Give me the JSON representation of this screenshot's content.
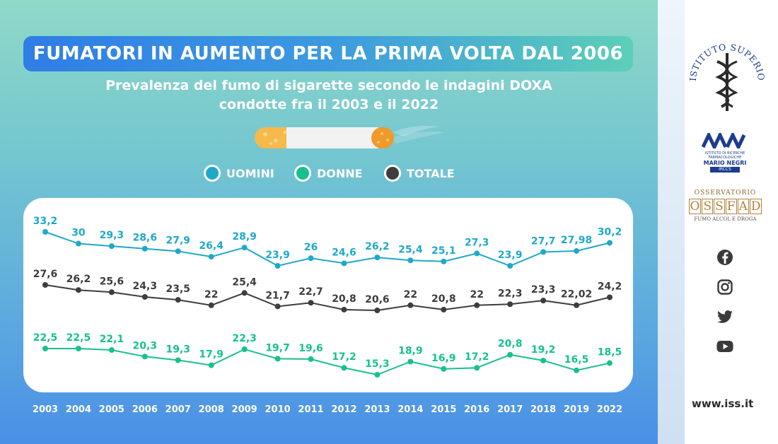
{
  "title": "FUMATORI IN AUMENTO PER LA PRIMA VOLTA DAL 2006",
  "subtitle_line1": "Prevalenza del fumo di sigarette secondo le indagini DOXA",
  "subtitle_line2": "condotte fra il 2003 e il 2022",
  "legend": {
    "uomini": "UOMINI",
    "donne": "DONNE",
    "totale": "TOTALE"
  },
  "colors": {
    "uomini": "#1ea9c8",
    "donne": "#17c08f",
    "totale": "#3d3d3d"
  },
  "chart_data": {
    "type": "line",
    "x": [
      "2003",
      "2004",
      "2005",
      "2006",
      "2007",
      "2008",
      "2009",
      "2010",
      "2011",
      "2012",
      "2013",
      "2014",
      "2015",
      "2016",
      "2017",
      "2018",
      "2019",
      "2022"
    ],
    "series": [
      {
        "name": "UOMINI",
        "color": "#1ea9c8",
        "values": [
          33.2,
          30,
          29.3,
          28.6,
          27.9,
          26.4,
          28.9,
          23.9,
          26,
          24.6,
          26.2,
          25.4,
          25.1,
          27.3,
          23.9,
          27.7,
          27.98,
          30.2
        ],
        "labels": [
          "33,2",
          "30",
          "29,3",
          "28,6",
          "27,9",
          "26,4",
          "28,9",
          "23,9",
          "26",
          "24,6",
          "26,2",
          "25,4",
          "25,1",
          "27,3",
          "23,9",
          "27,7",
          "27,98",
          "30,2"
        ]
      },
      {
        "name": "TOTALE",
        "color": "#3d3d3d",
        "values": [
          27.6,
          26.2,
          25.6,
          24.3,
          23.5,
          22,
          25.4,
          21.7,
          22.7,
          20.8,
          20.6,
          22,
          20.8,
          22,
          22.3,
          23.3,
          22.02,
          24.2
        ],
        "labels": [
          "27,6",
          "26,2",
          "25,6",
          "24,3",
          "23,5",
          "22",
          "25,4",
          "21,7",
          "22,7",
          "20,8",
          "20,6",
          "22",
          "20,8",
          "22",
          "22,3",
          "23,3",
          "22,02",
          "24,2"
        ]
      },
      {
        "name": "DONNE",
        "color": "#17c08f",
        "values": [
          22.5,
          22.5,
          22.1,
          20.3,
          19.3,
          17.9,
          22.3,
          19.7,
          19.6,
          17.2,
          15.3,
          18.9,
          16.9,
          17.2,
          20.8,
          19.2,
          16.5,
          18.5
        ],
        "labels": [
          "22,5",
          "22,5",
          "22,1",
          "20,3",
          "19,3",
          "17,9",
          "22,3",
          "19,7",
          "19,6",
          "17,2",
          "15,3",
          "18,9",
          "16,9",
          "17,2",
          "20,8",
          "19,2",
          "16,5",
          "18,5"
        ]
      }
    ]
  },
  "sidebar": {
    "iss_logo_text": "ISTITUTO SUPERIORE DI SANITÀ",
    "mn_logo_line1": "ISTITUTO DI RICERCHE FARMACOLOGICHE",
    "mn_logo_line2": "MARIO NEGRI",
    "mn_logo_line3": "IRCCS",
    "ossfad_line1": "OSSERVATORIO",
    "ossfad_letters": [
      "O",
      "S",
      "S",
      "F",
      "A",
      "D"
    ],
    "ossfad_line3": "FUMO ALCOL E DROGA",
    "social_icons": [
      "facebook-icon",
      "instagram-icon",
      "twitter-icon",
      "youtube-icon"
    ],
    "website": "www.iss.it"
  }
}
